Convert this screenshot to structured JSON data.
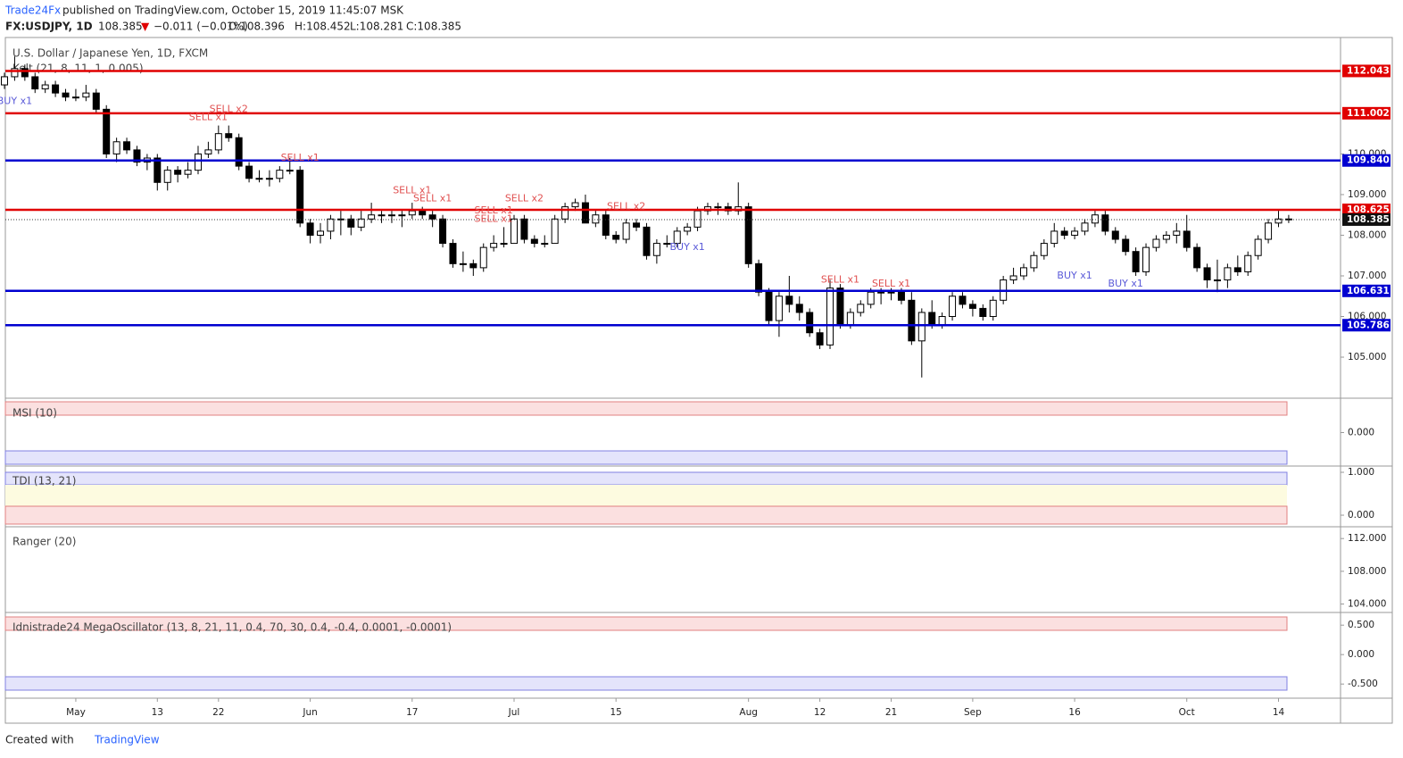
{
  "header": {
    "author": "Trade24Fx",
    "published": "published on TradingView.com, October 15, 2019 11:45:07 MSK",
    "symbol": "FX:USDJPY, 1D",
    "last": "108.385",
    "arrow": "▼",
    "change": "−0.011 (−0.01%)",
    "open": "O:108.396",
    "high": "H:108.452",
    "low": "L:108.281",
    "close": "C:108.385"
  },
  "chart_data": {
    "type": "candlestick",
    "title": "U.S. Dollar / Japanese Yen, 1D, FXCM",
    "indicator": "Kelt (21, 8, 11, 1, 0.005)",
    "ylim": [
      103.99,
      112.69
    ],
    "yticks": [
      {
        "value": 110,
        "label": "110.000"
      },
      {
        "value": 109,
        "label": "109.000"
      },
      {
        "value": 108,
        "label": "108.000"
      },
      {
        "value": 107,
        "label": "107.000"
      },
      {
        "value": 106,
        "label": "106.000"
      },
      {
        "value": 105,
        "label": "105.000"
      }
    ],
    "levels": [
      {
        "value": 112.043,
        "color": "#e00000"
      },
      {
        "value": 111.002,
        "color": "#e00000"
      },
      {
        "value": {
          "value": 109.84,
          "label": "109.840"
        },
        "color": "#0000d0"
      },
      {
        "value": 108.625,
        "color": "#e00000"
      },
      {
        "value": 106.631,
        "color": "#0000d0"
      },
      {
        "value": 105.786,
        "color": "#0000d0"
      }
    ],
    "current": 108.385,
    "x_labels": [
      {
        "index": 7,
        "label": "May"
      },
      {
        "index": 15,
        "label": "13"
      },
      {
        "index": 21,
        "label": "22"
      },
      {
        "index": 30,
        "label": "Jun"
      },
      {
        "index": 40,
        "label": "17"
      },
      {
        "index": 50,
        "label": "Jul"
      },
      {
        "index": 60,
        "label": "15"
      },
      {
        "index": 73,
        "label": "Aug"
      },
      {
        "index": 80,
        "label": "12"
      },
      {
        "index": 87,
        "label": "21"
      },
      {
        "index": 95,
        "label": "Sep"
      },
      {
        "index": 105,
        "label": "16"
      },
      {
        "index": 116,
        "label": "Oct"
      },
      {
        "index": 125,
        "label": "14"
      }
    ],
    "candles": [
      [
        111.7,
        112.0,
        111.6,
        111.9
      ],
      [
        111.9,
        112.4,
        111.8,
        112.1
      ],
      [
        112.1,
        112.2,
        111.8,
        111.9
      ],
      [
        111.9,
        112.0,
        111.5,
        111.6
      ],
      [
        111.6,
        111.8,
        111.5,
        111.7
      ],
      [
        111.7,
        111.8,
        111.4,
        111.5
      ],
      [
        111.5,
        111.6,
        111.3,
        111.4
      ],
      [
        111.4,
        111.6,
        111.3,
        111.4
      ],
      [
        111.4,
        111.7,
        111.3,
        111.5
      ],
      [
        111.5,
        111.6,
        111.0,
        111.1
      ],
      [
        111.1,
        111.2,
        109.9,
        110.0
      ],
      [
        110.0,
        110.4,
        109.8,
        110.3
      ],
      [
        110.3,
        110.4,
        110.0,
        110.1
      ],
      [
        110.1,
        110.2,
        109.7,
        109.8
      ],
      [
        109.8,
        110.0,
        109.6,
        109.9
      ],
      [
        109.9,
        110.0,
        109.1,
        109.3
      ],
      [
        109.3,
        109.7,
        109.1,
        109.6
      ],
      [
        109.6,
        109.7,
        109.3,
        109.5
      ],
      [
        109.5,
        109.8,
        109.4,
        109.6
      ],
      [
        109.6,
        110.2,
        109.5,
        110.0
      ],
      [
        110.0,
        110.3,
        109.9,
        110.1
      ],
      [
        110.1,
        110.7,
        110.0,
        110.5
      ],
      [
        110.5,
        110.7,
        110.3,
        110.4
      ],
      [
        110.4,
        110.5,
        109.6,
        109.7
      ],
      [
        109.7,
        109.8,
        109.3,
        109.4
      ],
      [
        109.4,
        109.6,
        109.3,
        109.4
      ],
      [
        109.4,
        109.6,
        109.2,
        109.4
      ],
      [
        109.4,
        109.7,
        109.3,
        109.6
      ],
      [
        109.6,
        109.9,
        109.5,
        109.6
      ],
      [
        109.6,
        109.7,
        108.2,
        108.3
      ],
      [
        108.3,
        108.4,
        107.8,
        108.0
      ],
      [
        108.0,
        108.3,
        107.8,
        108.1
      ],
      [
        108.1,
        108.5,
        107.9,
        108.4
      ],
      [
        108.4,
        108.6,
        108.0,
        108.4
      ],
      [
        108.4,
        108.5,
        108.0,
        108.2
      ],
      [
        108.2,
        108.6,
        108.1,
        108.4
      ],
      [
        108.4,
        108.8,
        108.3,
        108.5
      ],
      [
        108.5,
        108.6,
        108.3,
        108.5
      ],
      [
        108.5,
        108.6,
        108.3,
        108.5
      ],
      [
        108.5,
        108.6,
        108.2,
        108.5
      ],
      [
        108.5,
        108.8,
        108.4,
        108.6
      ],
      [
        108.6,
        108.7,
        108.4,
        108.5
      ],
      [
        108.5,
        108.6,
        108.2,
        108.4
      ],
      [
        108.4,
        108.5,
        107.7,
        107.8
      ],
      [
        107.8,
        107.9,
        107.2,
        107.3
      ],
      [
        107.3,
        107.6,
        107.1,
        107.3
      ],
      [
        107.3,
        107.4,
        107.0,
        107.2
      ],
      [
        107.2,
        107.8,
        107.1,
        107.7
      ],
      [
        107.7,
        108.0,
        107.6,
        107.8
      ],
      [
        107.8,
        108.2,
        107.7,
        107.8
      ],
      [
        107.8,
        108.5,
        107.8,
        108.4
      ],
      [
        108.4,
        108.5,
        107.8,
        107.9
      ],
      [
        107.9,
        108.0,
        107.7,
        107.8
      ],
      [
        107.8,
        108.0,
        107.7,
        107.8
      ],
      [
        107.8,
        108.5,
        107.8,
        108.4
      ],
      [
        108.4,
        108.8,
        108.3,
        108.7
      ],
      [
        108.7,
        108.9,
        108.6,
        108.8
      ],
      [
        108.8,
        109.0,
        108.3,
        108.3
      ],
      [
        108.3,
        108.6,
        108.2,
        108.5
      ],
      [
        108.5,
        108.6,
        107.9,
        108.0
      ],
      [
        108.0,
        108.1,
        107.8,
        107.9
      ],
      [
        107.9,
        108.4,
        107.8,
        108.3
      ],
      [
        108.3,
        108.4,
        108.1,
        108.2
      ],
      [
        108.2,
        108.3,
        107.4,
        107.5
      ],
      [
        107.5,
        107.9,
        107.3,
        107.8
      ],
      [
        107.8,
        108.0,
        107.7,
        107.8
      ],
      [
        107.8,
        108.2,
        107.7,
        108.1
      ],
      [
        108.1,
        108.3,
        108.0,
        108.2
      ],
      [
        108.2,
        108.7,
        108.1,
        108.6
      ],
      [
        108.6,
        108.8,
        108.5,
        108.7
      ],
      [
        108.7,
        108.8,
        108.5,
        108.7
      ],
      [
        108.7,
        108.8,
        108.5,
        108.6
      ],
      [
        108.6,
        109.3,
        108.5,
        108.7
      ],
      [
        108.7,
        108.8,
        107.2,
        107.3
      ],
      [
        107.3,
        107.4,
        106.5,
        106.6
      ],
      [
        106.6,
        106.7,
        105.8,
        105.9
      ],
      [
        105.9,
        106.6,
        105.5,
        106.5
      ],
      [
        106.5,
        107.0,
        106.1,
        106.3
      ],
      [
        106.3,
        106.5,
        105.9,
        106.1
      ],
      [
        106.1,
        106.2,
        105.5,
        105.6
      ],
      [
        105.6,
        105.7,
        105.2,
        105.3
      ],
      [
        105.3,
        106.9,
        105.2,
        106.7
      ],
      [
        106.7,
        106.8,
        105.7,
        105.8
      ],
      [
        105.8,
        106.2,
        105.7,
        106.1
      ],
      [
        106.1,
        106.4,
        106.0,
        106.3
      ],
      [
        106.3,
        106.7,
        106.2,
        106.6
      ],
      [
        106.6,
        106.7,
        106.3,
        106.6
      ],
      [
        106.6,
        106.7,
        106.4,
        106.6
      ],
      [
        106.6,
        106.7,
        106.3,
        106.4
      ],
      [
        106.4,
        106.6,
        105.3,
        105.4
      ],
      [
        105.4,
        106.2,
        104.5,
        106.1
      ],
      [
        106.1,
        106.4,
        105.7,
        105.8
      ],
      [
        105.8,
        106.1,
        105.7,
        106.0
      ],
      [
        106.0,
        106.6,
        105.9,
        106.5
      ],
      [
        106.5,
        106.6,
        106.2,
        106.3
      ],
      [
        106.3,
        106.4,
        106.0,
        106.2
      ],
      [
        106.2,
        106.3,
        105.9,
        106.0
      ],
      [
        106.0,
        106.5,
        105.9,
        106.4
      ],
      [
        106.4,
        107.0,
        106.3,
        106.9
      ],
      [
        106.9,
        107.2,
        106.8,
        107.0
      ],
      [
        107.0,
        107.3,
        106.9,
        107.2
      ],
      [
        107.2,
        107.6,
        107.1,
        107.5
      ],
      [
        107.5,
        107.9,
        107.4,
        107.8
      ],
      [
        107.8,
        108.3,
        107.7,
        108.1
      ],
      [
        108.1,
        108.2,
        107.9,
        108.0
      ],
      [
        108.0,
        108.2,
        107.9,
        108.1
      ],
      [
        108.1,
        108.4,
        108.0,
        108.3
      ],
      [
        108.3,
        108.6,
        108.2,
        108.5
      ],
      [
        108.5,
        108.6,
        108.0,
        108.1
      ],
      [
        108.1,
        108.2,
        107.8,
        107.9
      ],
      [
        107.9,
        108.0,
        107.5,
        107.6
      ],
      [
        107.6,
        107.7,
        107.0,
        107.1
      ],
      [
        107.1,
        107.8,
        107.0,
        107.7
      ],
      [
        107.7,
        108.0,
        107.6,
        107.9
      ],
      [
        107.9,
        108.1,
        107.8,
        108.0
      ],
      [
        108.0,
        108.3,
        107.8,
        108.1
      ],
      [
        108.1,
        108.5,
        107.6,
        107.7
      ],
      [
        107.7,
        107.8,
        107.1,
        107.2
      ],
      [
        107.2,
        107.3,
        106.7,
        106.9
      ],
      [
        106.9,
        107.4,
        106.6,
        106.9
      ],
      [
        106.9,
        107.3,
        106.7,
        107.2
      ],
      [
        107.2,
        107.5,
        107.0,
        107.1
      ],
      [
        107.1,
        107.6,
        107.0,
        107.5
      ],
      [
        107.5,
        108.0,
        107.4,
        107.9
      ],
      [
        107.9,
        108.4,
        107.8,
        108.3
      ],
      [
        108.3,
        108.6,
        108.2,
        108.4
      ],
      [
        108.4,
        108.5,
        108.3,
        108.385
      ]
    ],
    "signals": [
      {
        "label": "BUY x1",
        "index": 1,
        "price": 111.3,
        "color": "#5a5ad8"
      },
      {
        "label": "SELL x1",
        "index": 20,
        "price": 110.9,
        "color": "#e05050"
      },
      {
        "label": "SELL x2",
        "index": 22,
        "price": 111.1,
        "color": "#e05050"
      },
      {
        "label": "SELL x1",
        "index": 29,
        "price": 109.9,
        "color": "#e05050"
      },
      {
        "label": "SELL x1",
        "index": 40,
        "price": 109.1,
        "color": "#e05050"
      },
      {
        "label": "SELL x1",
        "index": 42,
        "price": 108.9,
        "color": "#e05050"
      },
      {
        "label": "SELL x1",
        "index": 48,
        "price": 108.6,
        "color": "#e05050"
      },
      {
        "label": "SELL x1",
        "index": 48,
        "price": 108.4,
        "color": "#e05050"
      },
      {
        "label": "SELL x2",
        "index": 51,
        "price": 108.9,
        "color": "#e05050"
      },
      {
        "label": "SELL x2",
        "index": 61,
        "price": 108.7,
        "color": "#e05050"
      },
      {
        "label": "BUY x1",
        "index": 67,
        "price": 107.7,
        "color": "#5a5ad8"
      },
      {
        "label": "SELL x1",
        "index": 82,
        "price": 106.9,
        "color": "#e05050"
      },
      {
        "label": "SELL x1",
        "index": 87,
        "price": 106.8,
        "color": "#e05050"
      },
      {
        "label": "BUY x1",
        "index": 105,
        "price": 107.0,
        "color": "#5a5ad8"
      },
      {
        "label": "BUY x1",
        "index": 110,
        "price": 106.8,
        "color": "#5a5ad8"
      }
    ],
    "panes": [
      {
        "title": "MSI (10)",
        "ylim": [
          -1,
          1
        ],
        "yticks": [
          {
            "value": 0,
            "label": "0.000"
          }
        ]
      },
      {
        "title": "TDI (13, 21)",
        "ylim": [
          -0.27,
          1.125
        ],
        "yticks": [
          {
            "value": 1,
            "label": "1.000"
          },
          {
            "value": 0,
            "label": "0.000"
          }
        ]
      },
      {
        "title": "Ranger (20)",
        "ylim": [
          102.97,
          113.33
        ],
        "yticks": [
          {
            "value": 112,
            "label": "112.000"
          },
          {
            "value": 108,
            "label": "108.000"
          },
          {
            "value": 104,
            "label": "104.000"
          }
        ]
      },
      {
        "title": "Idnistrade24 MegaOscillator (13, 8, 21, 11, 0.4, 70, 30, 0.4, -0.4, 0.0001, -0.0001)",
        "ylim": [
          -0.74,
          0.7
        ],
        "yticks": [
          {
            "value": 0.5,
            "label": "0.500"
          },
          {
            "value": 0,
            "label": "0.000"
          },
          {
            "value": -0.5,
            "label": "-0.500"
          }
        ]
      }
    ]
  },
  "footer": {
    "created": "Created with",
    "brand": "TradingView"
  }
}
